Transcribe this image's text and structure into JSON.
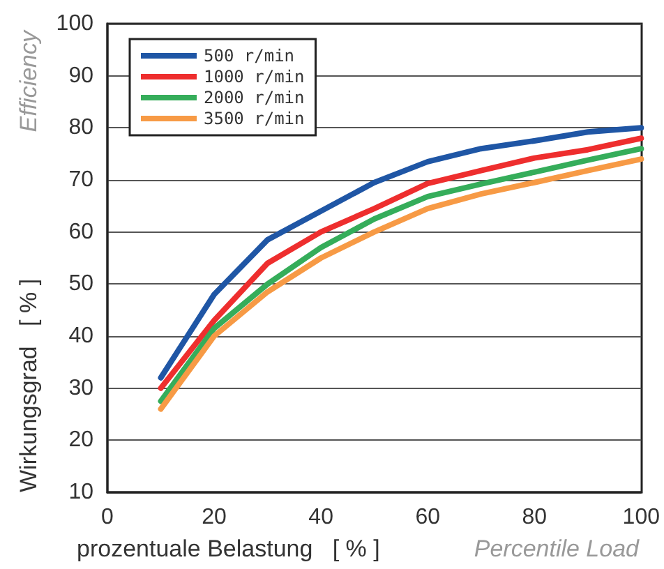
{
  "chart_data": {
    "type": "line",
    "xlabel": "prozentuale Belastung   [ % ]",
    "ylabel": "Wirkungsgrad   [ % ]",
    "annotations": [
      "Percentile Load",
      "Efficiency"
    ],
    "x": [
      10,
      20,
      30,
      40,
      50,
      60,
      70,
      80,
      90,
      100
    ],
    "series": [
      {
        "name": "500 r/min",
        "color": "#1f56a5",
        "values": [
          32,
          48,
          58.5,
          64,
          69.5,
          73.5,
          76,
          77.5,
          79.2,
          80
        ]
      },
      {
        "name": "1000 r/min",
        "color": "#ee2e2e",
        "values": [
          30,
          43,
          54,
          60,
          64.5,
          69.3,
          71.8,
          74.2,
          75.8,
          78
        ]
      },
      {
        "name": "2000 r/min",
        "color": "#35ad5a",
        "values": [
          27.5,
          41.5,
          50,
          57,
          62.5,
          66.8,
          69.2,
          71.5,
          73.8,
          76
        ]
      },
      {
        "name": "3500 r/min",
        "color": "#f79a45",
        "values": [
          26,
          40,
          48.5,
          55,
          60,
          64.5,
          67.3,
          69.5,
          71.8,
          74
        ]
      }
    ],
    "xlim": [
      0,
      100
    ],
    "xticks": [
      0,
      20,
      40,
      60,
      80,
      100
    ],
    "ylim": [
      10,
      100
    ],
    "yticks": [
      10,
      20,
      30,
      40,
      50,
      60,
      70,
      80,
      90,
      100
    ],
    "grid": "y",
    "legend": "top left",
    "marker": "none",
    "line_style": "solid"
  }
}
